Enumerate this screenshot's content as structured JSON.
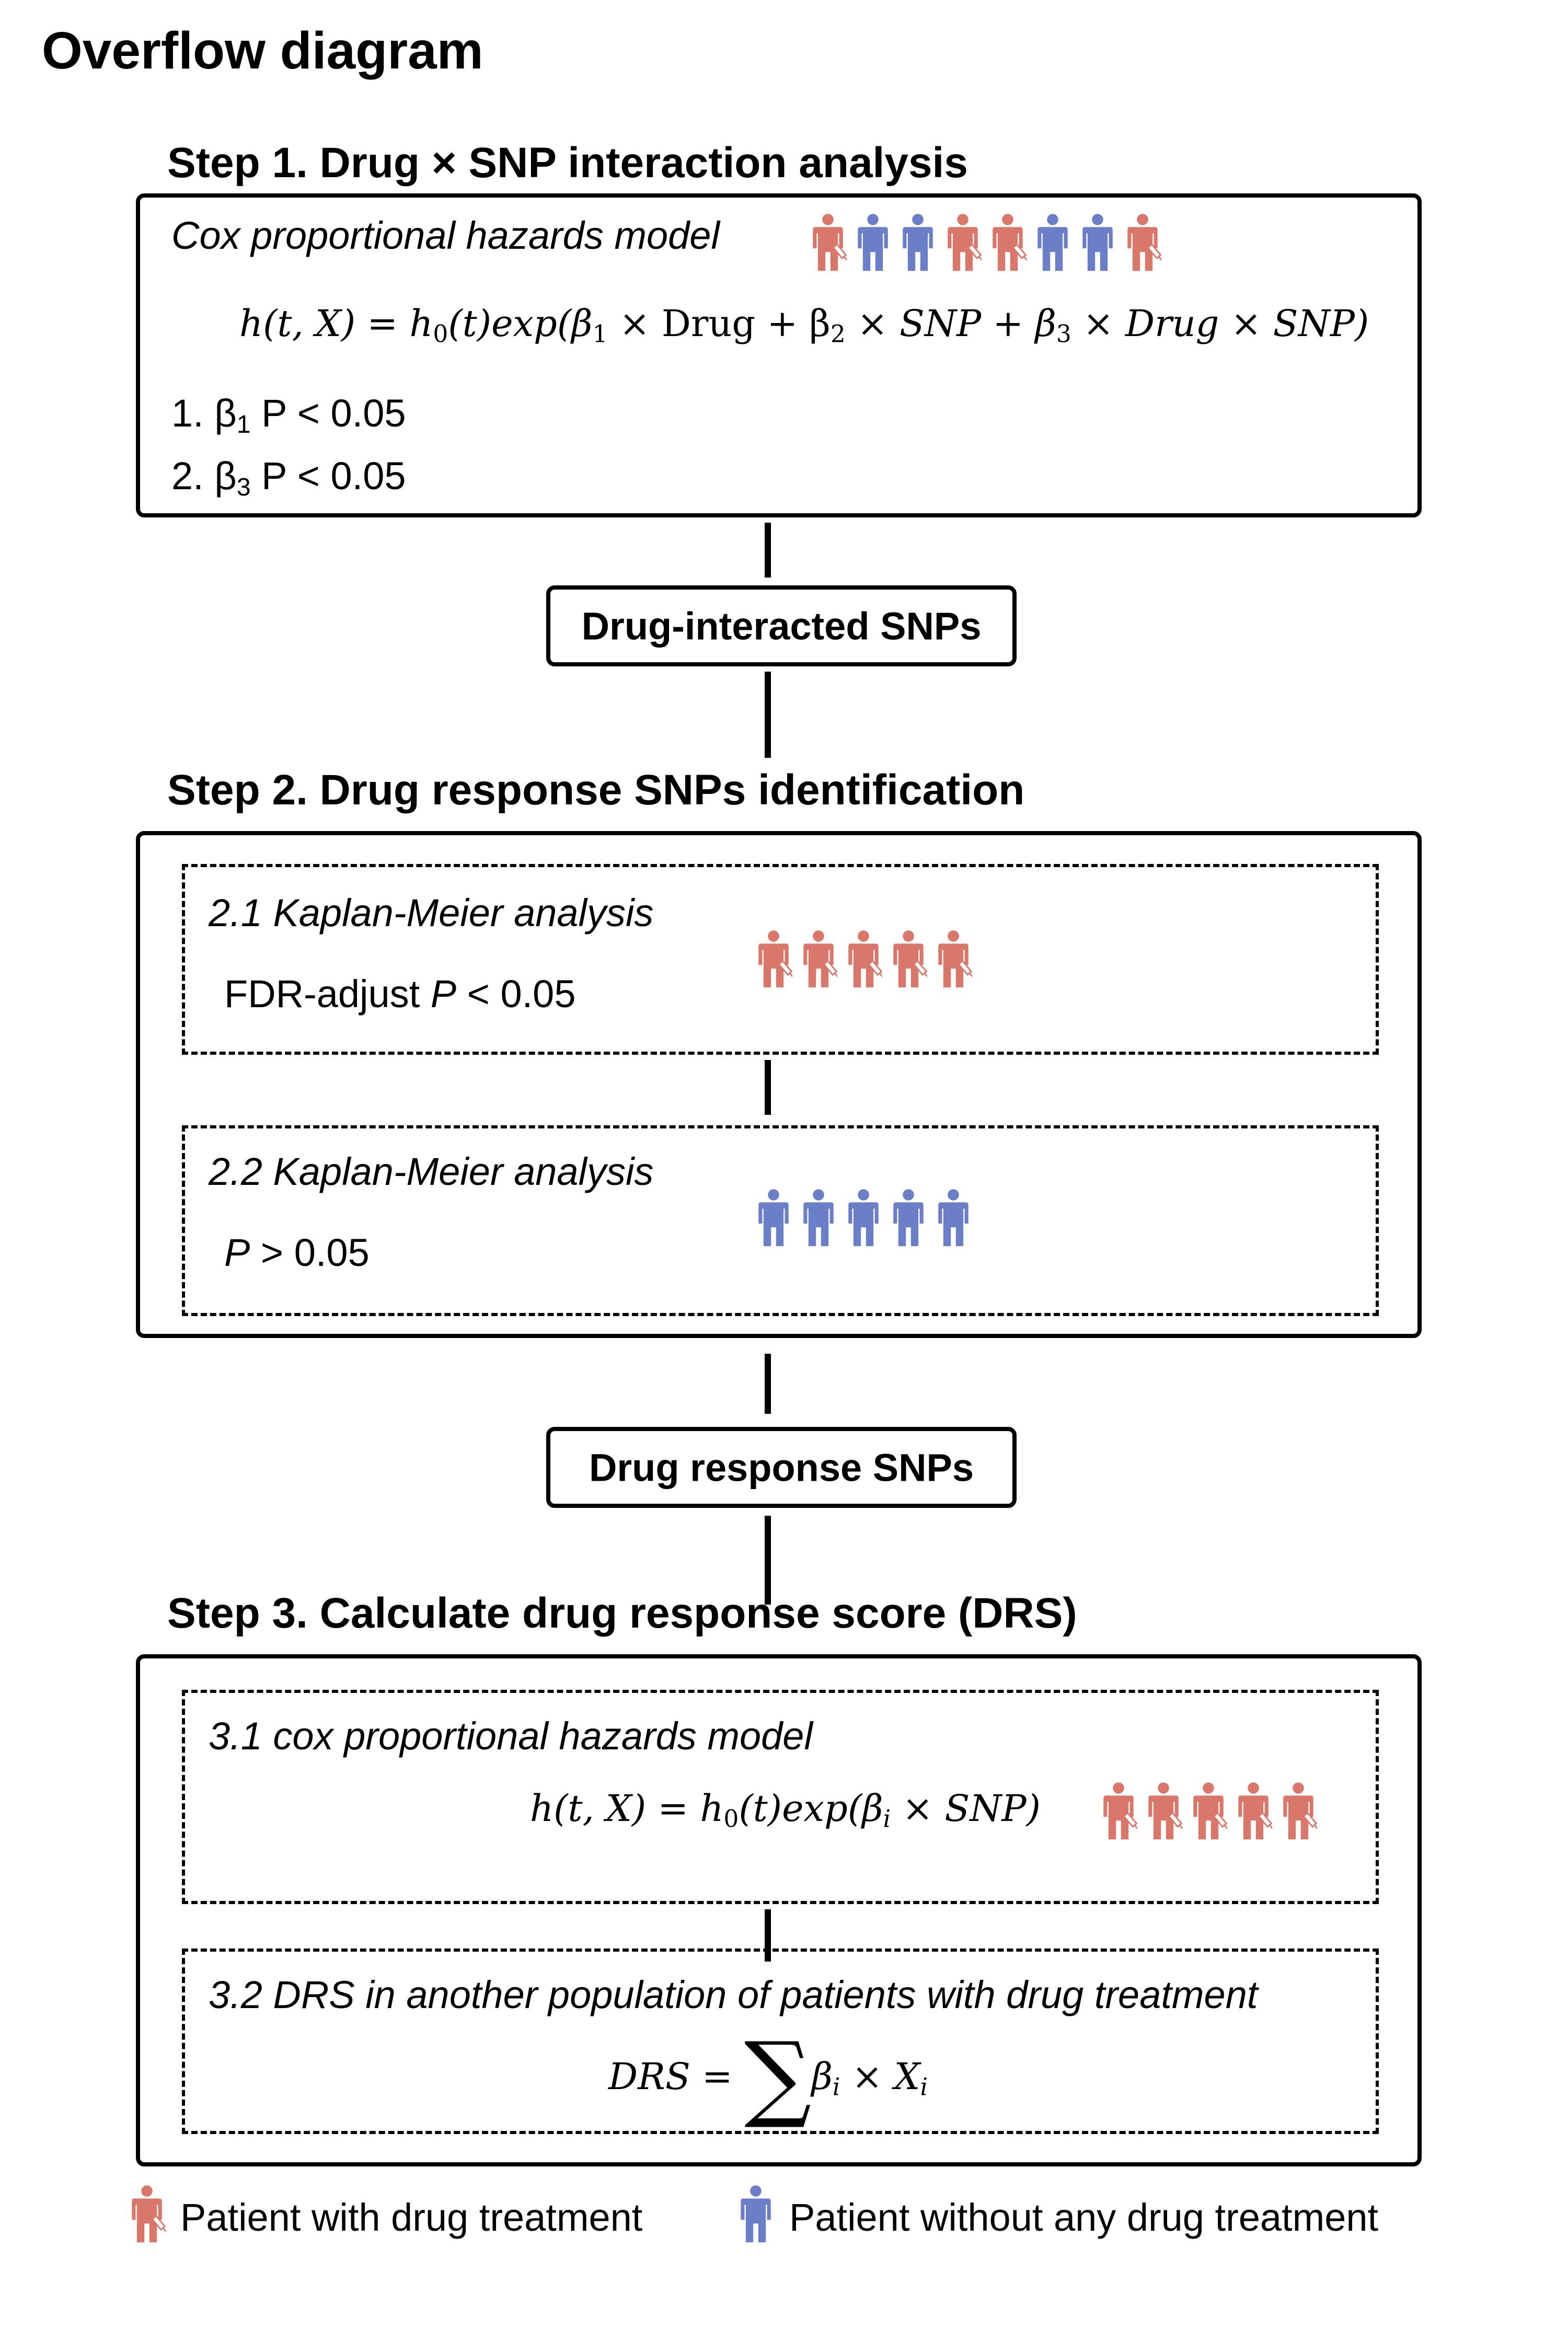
{
  "title": "Overflow diagram",
  "colors": {
    "treated": "#d9776a",
    "untreated": "#6b7fc9"
  },
  "step1": {
    "title": "Step 1. Drug × SNP interaction analysis",
    "model": "Cox proportional hazards model",
    "formula": {
      "lhs": "h(t, X) = h",
      "h_sub": "0",
      "after_h0": "(t)exp(β",
      "b1_sub": "1",
      "mid1": " × Drug + β",
      "b2_sub": "2",
      "mid2": " × SNP + β",
      "b3_sub": "3",
      "end": " × Drug × SNP)"
    },
    "criteria": [
      {
        "prefix": "1. β",
        "sub": "1",
        "rest": " P < 0.05"
      },
      {
        "prefix": "2. β",
        "sub": "3",
        "rest": " P < 0.05"
      }
    ],
    "icons": [
      "treated",
      "untreated",
      "untreated",
      "treated",
      "treated",
      "untreated",
      "untreated",
      "treated"
    ]
  },
  "connector1": {
    "label": "Drug-interacted SNPs"
  },
  "step2": {
    "title": "Step 2. Drug response SNPs identification",
    "sub1": {
      "title": "2.1 Kaplan-Meier analysis",
      "condition_prefix": "FDR-adjust ",
      "condition_p": "P",
      "condition_rest": " < 0.05"
    },
    "sub2": {
      "title": "2.2 Kaplan-Meier analysis",
      "condition_p": "P",
      "condition_rest": " > 0.05"
    }
  },
  "connector2": {
    "label": "Drug response SNPs"
  },
  "step3": {
    "title": "Step 3. Calculate drug response score (DRS)",
    "sub1": {
      "title": "3.1 cox proportional hazards model",
      "formula": {
        "lhs": "h(t, X) = h",
        "h_sub": "0",
        "mid": "(t)exp(β",
        "b_sub": "i",
        "end": " × SNP)"
      }
    },
    "sub2": {
      "title": "3.2 DRS in another population of patients with drug treatment",
      "formula": {
        "lhs": "DRS = ",
        "sum": "∑",
        "beta": "β",
        "b_sub": "i",
        "times": " × X",
        "x_sub": "i"
      }
    }
  },
  "legend": {
    "treated": "Patient with drug treatment",
    "untreated": "Patient without any drug treatment"
  }
}
